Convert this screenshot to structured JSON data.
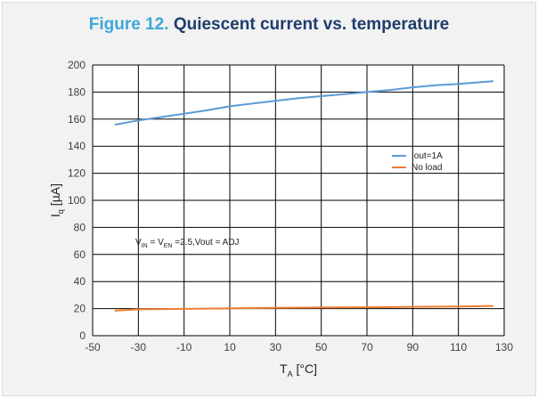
{
  "header": {
    "figure_number": "Figure 12.",
    "title": "Quiescent current vs. temperature"
  },
  "chart_data": {
    "type": "line",
    "xlabel": {
      "main": "T",
      "sub": "A",
      "unit": " [°C]"
    },
    "ylabel": {
      "main": "I",
      "sub": "q",
      "unit": " [µA]"
    },
    "xlim": [
      -50,
      130
    ],
    "ylim": [
      0,
      200
    ],
    "x_ticks": [
      -50,
      -30,
      -10,
      10,
      30,
      50,
      70,
      90,
      110,
      130
    ],
    "y_ticks": [
      0,
      20,
      40,
      60,
      80,
      100,
      120,
      140,
      160,
      180,
      200
    ],
    "grid": true,
    "legend_position": "right",
    "series": [
      {
        "name": "Iout=1A",
        "color": "#5b9bd5",
        "x": [
          -40,
          -30,
          -20,
          -10,
          0,
          10,
          20,
          30,
          40,
          50,
          60,
          70,
          80,
          90,
          100,
          110,
          125
        ],
        "y": [
          156,
          159,
          161.5,
          164,
          166.5,
          169.5,
          171.5,
          173.5,
          175.5,
          177,
          178.5,
          180,
          181.5,
          183.5,
          185,
          186,
          188
        ]
      },
      {
        "name": "No load",
        "color": "#ed7d31",
        "x": [
          -40,
          -30,
          -10,
          10,
          30,
          50,
          70,
          90,
          110,
          125
        ],
        "y": [
          18.5,
          19.5,
          19.8,
          20.2,
          20.6,
          20.8,
          21,
          21.3,
          21.6,
          22
        ]
      }
    ],
    "annotation": {
      "p1": "V",
      "p1_sub": "IN",
      "p2": " = V",
      "p2_sub": "EN",
      "p3": " =2.5,Vout = ADJ"
    }
  }
}
